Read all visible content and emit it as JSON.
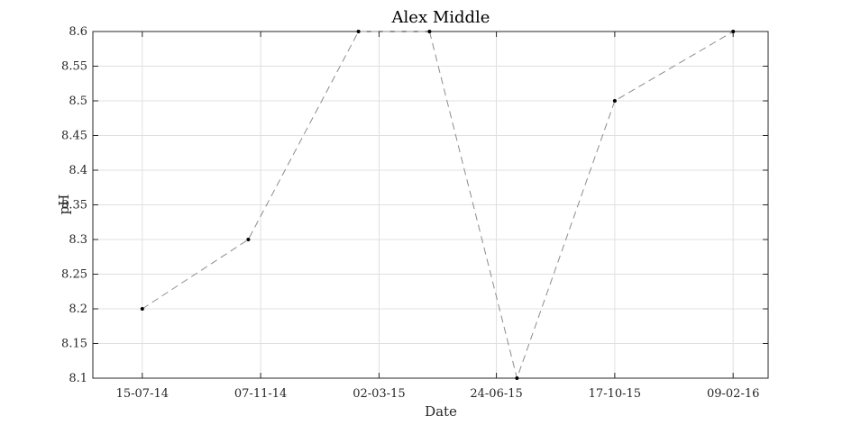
{
  "chart_data": {
    "type": "line",
    "title": "Alex Middle",
    "xlabel": "Date",
    "ylabel": "pH",
    "x_ticks": [
      "15-07-14",
      "07-11-14",
      "02-03-15",
      "24-06-15",
      "17-10-15",
      "09-02-16"
    ],
    "x_range": [
      "2014-05-28",
      "2016-03-14"
    ],
    "ylim": [
      8.1,
      8.6
    ],
    "y_ticks": [
      8.1,
      8.15,
      8.2,
      8.25,
      8.3,
      8.35,
      8.4,
      8.45,
      8.5,
      8.55,
      8.6
    ],
    "grid": true,
    "line_style": "dashed",
    "colors": {
      "line": "#8c8c8c",
      "marker": "#000000",
      "grid": "#e0e0e0",
      "axis": "#262626"
    },
    "series": [
      {
        "x": [
          "2014-07-15",
          "2014-10-26",
          "2015-02-10",
          "2015-04-20",
          "2015-07-14",
          "2015-10-17",
          "2016-02-09"
        ],
        "y": [
          8.2,
          8.3,
          8.6,
          8.6,
          8.1,
          8.5,
          8.6
        ]
      }
    ]
  }
}
